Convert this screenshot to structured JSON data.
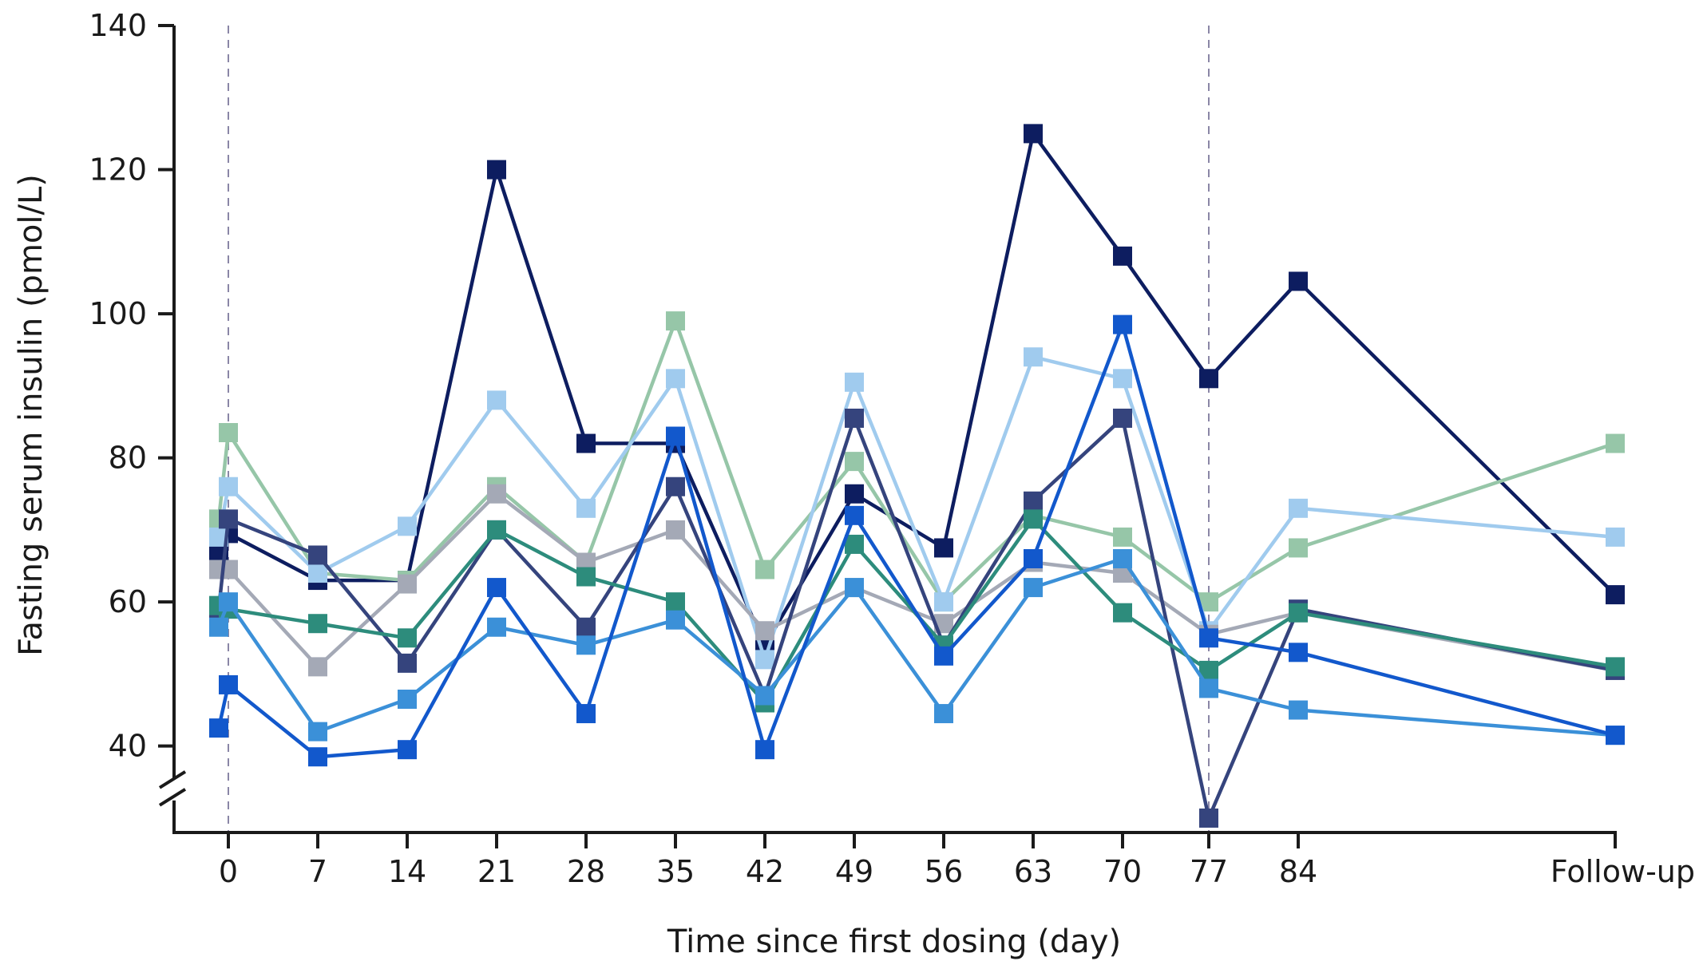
{
  "chart_data": {
    "type": "line",
    "title": "",
    "xlabel": "Time since first dosing (day)",
    "ylabel": "Fasting serum insulin (pmol/L)",
    "x_tick_labels": [
      "0",
      "7",
      "14",
      "21",
      "28",
      "35",
      "42",
      "49",
      "56",
      "63",
      "70",
      "77",
      "84",
      "Follow-up"
    ],
    "y_ticks": [
      40,
      60,
      80,
      100,
      120,
      140
    ],
    "y_tick_labels": [
      "40",
      "60",
      "80",
      "100",
      "120",
      "140"
    ],
    "ylim": [
      28,
      140
    ],
    "axis_break": true,
    "grid": false,
    "legend": "none",
    "reference_lines_x": [
      "0",
      "77"
    ],
    "series": [
      {
        "color": "#0d1d60",
        "points": [
          [
            "-0.5",
            67
          ],
          [
            "0",
            69.5
          ],
          [
            "7",
            63
          ],
          [
            "14",
            63
          ],
          [
            "21",
            120
          ],
          [
            "28",
            82
          ],
          [
            "35",
            82
          ],
          [
            "42",
            54
          ],
          [
            "49",
            75
          ],
          [
            "56",
            67.5
          ],
          [
            "63",
            125
          ],
          [
            "70",
            108
          ],
          [
            "77",
            91
          ],
          [
            "84",
            104.5
          ],
          [
            "Follow-up",
            61
          ]
        ]
      },
      {
        "color": "#96c6a8",
        "points": [
          [
            "-0.5",
            71.5
          ],
          [
            "0",
            83.5
          ],
          [
            "7",
            64
          ],
          [
            "14",
            63
          ],
          [
            "21",
            76
          ],
          [
            "28",
            65.5
          ],
          [
            "35",
            99
          ],
          [
            "42",
            64.5
          ],
          [
            "49",
            79.5
          ],
          [
            "56",
            60
          ],
          [
            "63",
            72
          ],
          [
            "70",
            69
          ],
          [
            "77",
            60
          ],
          [
            "84",
            67.5
          ],
          [
            "Follow-up",
            82
          ]
        ]
      },
      {
        "color": "#a0cbee",
        "points": [
          [
            "-0.5",
            69
          ],
          [
            "0",
            76
          ],
          [
            "7",
            64
          ],
          [
            "14",
            70.5
          ],
          [
            "21",
            88
          ],
          [
            "28",
            73
          ],
          [
            "35",
            91
          ],
          [
            "42",
            52
          ],
          [
            "49",
            90.5
          ],
          [
            "56",
            60
          ],
          [
            "63",
            94
          ],
          [
            "70",
            91
          ],
          [
            "77",
            56
          ],
          [
            "84",
            73
          ],
          [
            "Follow-up",
            69
          ]
        ]
      },
      {
        "color": "#a4a9b6",
        "points": [
          [
            "-0.5",
            64.5
          ],
          [
            "0",
            64.5
          ],
          [
            "7",
            51
          ],
          [
            "14",
            62.5
          ],
          [
            "21",
            75
          ],
          [
            "28",
            65.5
          ],
          [
            "35",
            70
          ],
          [
            "42",
            56
          ],
          [
            "49",
            62
          ],
          [
            "56",
            57
          ],
          [
            "63",
            65.5
          ],
          [
            "70",
            64
          ],
          [
            "77",
            55.5
          ],
          [
            "84",
            58.5
          ],
          [
            "Follow-up",
            50.5
          ]
        ]
      },
      {
        "color": "#35447d",
        "points": [
          [
            "-0.5",
            59
          ],
          [
            "0",
            71.5
          ],
          [
            "7",
            66.5
          ],
          [
            "14",
            51.5
          ],
          [
            "21",
            70
          ],
          [
            "28",
            56.5
          ],
          [
            "35",
            76
          ],
          [
            "42",
            47
          ],
          [
            "49",
            85.5
          ],
          [
            "56",
            54
          ],
          [
            "63",
            74
          ],
          [
            "70",
            85.5
          ],
          [
            "77",
            30
          ],
          [
            "84",
            59
          ],
          [
            "Follow-up",
            50.5
          ]
        ]
      },
      {
        "color": "#2d8c7c",
        "points": [
          [
            "-0.5",
            59.5
          ],
          [
            "0",
            59
          ],
          [
            "7",
            57
          ],
          [
            "14",
            55
          ],
          [
            "21",
            70
          ],
          [
            "28",
            63.5
          ],
          [
            "35",
            60
          ],
          [
            "42",
            46
          ],
          [
            "49",
            68
          ],
          [
            "56",
            54
          ],
          [
            "63",
            71.5
          ],
          [
            "70",
            58.5
          ],
          [
            "77",
            50.5
          ],
          [
            "84",
            58.5
          ],
          [
            "Follow-up",
            51
          ]
        ]
      },
      {
        "color": "#3b90d8",
        "points": [
          [
            "-0.5",
            56.5
          ],
          [
            "0",
            60
          ],
          [
            "7",
            42
          ],
          [
            "14",
            46.5
          ],
          [
            "21",
            56.5
          ],
          [
            "28",
            54
          ],
          [
            "35",
            57.5
          ],
          [
            "42",
            47
          ],
          [
            "49",
            62
          ],
          [
            "56",
            44.5
          ],
          [
            "63",
            62
          ],
          [
            "70",
            66
          ],
          [
            "77",
            48
          ],
          [
            "84",
            45
          ],
          [
            "Follow-up",
            41.5
          ]
        ]
      },
      {
        "color": "#1258cc",
        "points": [
          [
            "-0.5",
            42.5
          ],
          [
            "0",
            48.5
          ],
          [
            "7",
            38.5
          ],
          [
            "14",
            39.5
          ],
          [
            "21",
            62
          ],
          [
            "28",
            44.5
          ],
          [
            "35",
            83
          ],
          [
            "42",
            39.5
          ],
          [
            "49",
            72
          ],
          [
            "56",
            52.5
          ],
          [
            "63",
            66
          ],
          [
            "70",
            98.5
          ],
          [
            "77",
            55
          ],
          [
            "84",
            53
          ],
          [
            "Follow-up",
            41.5
          ]
        ]
      }
    ]
  }
}
